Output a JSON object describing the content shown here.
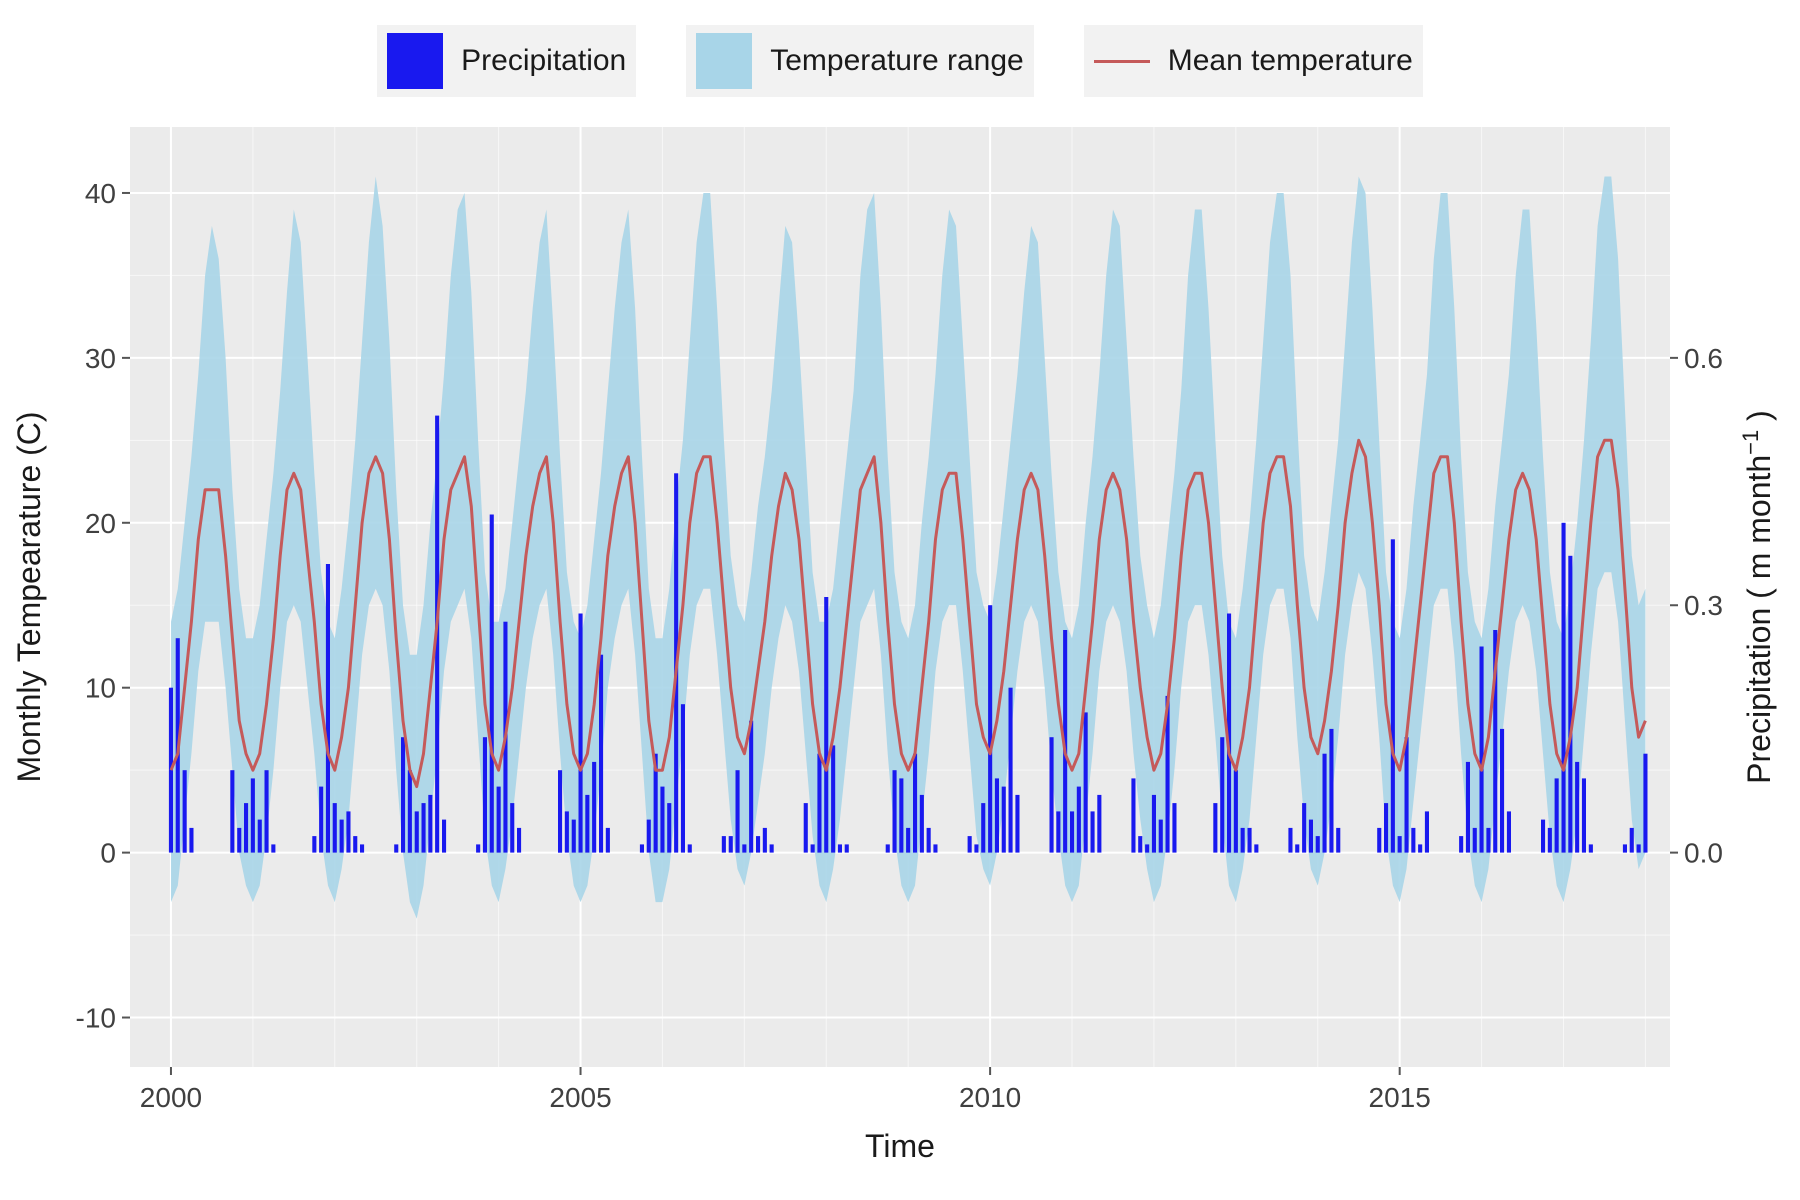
{
  "legend": {
    "precip_label": "Precipitation",
    "range_label": "Temperature range",
    "mean_label": "Mean temperature"
  },
  "chart": {
    "type": "combo-bar-line-ribbon",
    "x_axis": {
      "label": "Time",
      "ticks": [
        2000,
        2005,
        2010,
        2015
      ],
      "xlim": [
        1999.5,
        2018.3
      ],
      "label_fontsize": 32,
      "tick_fontsize": 28
    },
    "y_left": {
      "label": "Monthly Tempearature (C)",
      "ticks": [
        -10,
        0,
        10,
        20,
        30,
        40
      ],
      "ylim": [
        -13,
        44
      ],
      "label_fontsize": 32,
      "tick_fontsize": 28
    },
    "y_right": {
      "label_pre": "Precipitation ( m month",
      "label_sup": "−1",
      "label_post": " )",
      "ticks": [
        0.0,
        0.3,
        0.6
      ],
      "ylim": [
        -0.26,
        0.88
      ],
      "label_fontsize": 32,
      "tick_fontsize": 28
    },
    "colors": {
      "precip_bar": "#1919ef",
      "temp_range_fill": "#a8d5e8",
      "temp_range_opacity": 0.9,
      "mean_temp_line": "#c55a5a",
      "panel_bg": "#ebebeb",
      "grid": "#ffffff",
      "text": "#1a1a1a"
    },
    "line_width": 3,
    "bar_width_months": 0.6,
    "n_months": 217,
    "start_year": 2000.0,
    "monthly_mean_temp": [
      5,
      6,
      10,
      14,
      19,
      22,
      22,
      22,
      18,
      13,
      8,
      6,
      5,
      6,
      9,
      13,
      18,
      22,
      23,
      22,
      18,
      14,
      9,
      6,
      5,
      7,
      10,
      15,
      20,
      23,
      24,
      23,
      19,
      13,
      8,
      5,
      4,
      6,
      10,
      14,
      19,
      22,
      23,
      24,
      21,
      15,
      9,
      6,
      5,
      7,
      10,
      14,
      18,
      21,
      23,
      24,
      20,
      14,
      9,
      6,
      5,
      6,
      9,
      13,
      18,
      21,
      23,
      24,
      20,
      14,
      8,
      5,
      5,
      7,
      11,
      15,
      20,
      23,
      24,
      24,
      20,
      15,
      10,
      7,
      6,
      8,
      11,
      14,
      18,
      21,
      23,
      22,
      19,
      14,
      9,
      6,
      5,
      7,
      10,
      14,
      18,
      22,
      23,
      24,
      20,
      14,
      9,
      6,
      5,
      6,
      10,
      14,
      19,
      22,
      23,
      23,
      19,
      14,
      9,
      7,
      6,
      8,
      11,
      15,
      19,
      22,
      23,
      22,
      18,
      13,
      9,
      6,
      5,
      6,
      10,
      14,
      19,
      22,
      23,
      22,
      19,
      14,
      10,
      7,
      5,
      6,
      9,
      13,
      18,
      22,
      23,
      23,
      20,
      15,
      10,
      6,
      5,
      7,
      10,
      15,
      20,
      23,
      24,
      24,
      21,
      15,
      10,
      7,
      6,
      8,
      11,
      15,
      20,
      23,
      25,
      24,
      20,
      15,
      9,
      6,
      5,
      7,
      11,
      15,
      19,
      23,
      24,
      24,
      20,
      14,
      9,
      6,
      5,
      7,
      11,
      15,
      19,
      22,
      23,
      22,
      19,
      14,
      9,
      6,
      5,
      7,
      10,
      15,
      20,
      24,
      25,
      25,
      22,
      16,
      10,
      7,
      8
    ],
    "monthly_temp_lo": [
      -3,
      -2,
      2,
      6,
      11,
      14,
      14,
      14,
      10,
      5,
      0,
      -2,
      -3,
      -2,
      1,
      5,
      10,
      14,
      15,
      14,
      10,
      6,
      1,
      -2,
      -3,
      -1,
      2,
      7,
      12,
      15,
      16,
      15,
      11,
      5,
      0,
      -3,
      -4,
      -2,
      2,
      6,
      11,
      14,
      15,
      16,
      13,
      7,
      1,
      -2,
      -3,
      -1,
      2,
      6,
      10,
      13,
      15,
      16,
      12,
      6,
      1,
      -2,
      -3,
      -2,
      1,
      5,
      10,
      13,
      15,
      16,
      12,
      6,
      0,
      -3,
      -3,
      -1,
      3,
      7,
      12,
      15,
      16,
      16,
      12,
      7,
      2,
      -1,
      -2,
      0,
      3,
      6,
      10,
      13,
      15,
      14,
      11,
      6,
      1,
      -2,
      -3,
      -1,
      2,
      6,
      10,
      14,
      15,
      16,
      12,
      6,
      1,
      -2,
      -3,
      -2,
      2,
      6,
      11,
      14,
      15,
      15,
      11,
      6,
      1,
      -1,
      -2,
      0,
      3,
      7,
      11,
      14,
      15,
      14,
      10,
      5,
      1,
      -2,
      -3,
      -2,
      2,
      6,
      11,
      14,
      15,
      14,
      11,
      6,
      2,
      -1,
      -3,
      -2,
      1,
      5,
      10,
      14,
      15,
      15,
      12,
      7,
      2,
      -2,
      -3,
      -1,
      2,
      7,
      12,
      15,
      16,
      16,
      13,
      7,
      2,
      -1,
      -2,
      0,
      3,
      7,
      12,
      15,
      17,
      16,
      12,
      7,
      1,
      -2,
      -3,
      -1,
      3,
      7,
      11,
      15,
      16,
      16,
      12,
      6,
      1,
      -2,
      -3,
      -1,
      3,
      7,
      11,
      14,
      15,
      14,
      11,
      6,
      1,
      -2,
      -3,
      -1,
      2,
      7,
      12,
      16,
      17,
      17,
      14,
      8,
      2,
      -1,
      0
    ],
    "monthly_temp_hi": [
      14,
      16,
      20,
      24,
      29,
      35,
      38,
      36,
      30,
      22,
      16,
      13,
      13,
      15,
      19,
      23,
      28,
      34,
      39,
      37,
      30,
      23,
      17,
      14,
      13,
      16,
      20,
      25,
      31,
      37,
      41,
      38,
      31,
      22,
      15,
      12,
      12,
      15,
      20,
      24,
      29,
      35,
      39,
      40,
      34,
      25,
      17,
      14,
      14,
      16,
      20,
      24,
      28,
      33,
      37,
      39,
      32,
      24,
      17,
      14,
      13,
      15,
      19,
      23,
      28,
      33,
      37,
      39,
      33,
      24,
      16,
      13,
      13,
      16,
      21,
      25,
      31,
      37,
      40,
      40,
      33,
      25,
      18,
      15,
      14,
      17,
      21,
      24,
      28,
      33,
      38,
      37,
      31,
      24,
      17,
      14,
      14,
      16,
      20,
      24,
      28,
      35,
      39,
      40,
      33,
      24,
      17,
      14,
      13,
      15,
      20,
      24,
      29,
      35,
      39,
      38,
      31,
      24,
      17,
      15,
      14,
      17,
      21,
      25,
      29,
      34,
      38,
      37,
      30,
      23,
      17,
      14,
      13,
      15,
      20,
      24,
      29,
      35,
      39,
      38,
      31,
      24,
      18,
      15,
      13,
      15,
      19,
      23,
      28,
      35,
      39,
      39,
      33,
      25,
      18,
      14,
      13,
      16,
      20,
      25,
      31,
      37,
      40,
      40,
      35,
      26,
      18,
      15,
      14,
      17,
      21,
      25,
      31,
      37,
      41,
      40,
      33,
      25,
      17,
      14,
      13,
      16,
      21,
      25,
      29,
      36,
      40,
      40,
      33,
      24,
      17,
      14,
      13,
      16,
      21,
      25,
      29,
      35,
      39,
      39,
      32,
      24,
      17,
      14,
      13,
      16,
      20,
      25,
      31,
      38,
      41,
      41,
      36,
      27,
      18,
      15,
      16
    ],
    "monthly_precip_m": [
      0.2,
      0.26,
      0.1,
      0.03,
      0.0,
      0.0,
      0.0,
      0.0,
      0.0,
      0.1,
      0.03,
      0.06,
      0.09,
      0.04,
      0.1,
      0.01,
      0.0,
      0.0,
      0.0,
      0.0,
      0.0,
      0.02,
      0.08,
      0.35,
      0.06,
      0.04,
      0.05,
      0.02,
      0.01,
      0.0,
      0.0,
      0.0,
      0.0,
      0.01,
      0.14,
      0.1,
      0.05,
      0.06,
      0.07,
      0.53,
      0.04,
      0.0,
      0.0,
      0.0,
      0.0,
      0.01,
      0.14,
      0.41,
      0.08,
      0.28,
      0.06,
      0.03,
      0.0,
      0.0,
      0.0,
      0.0,
      0.0,
      0.1,
      0.05,
      0.04,
      0.29,
      0.07,
      0.11,
      0.24,
      0.03,
      0.0,
      0.0,
      0.0,
      0.0,
      0.01,
      0.04,
      0.12,
      0.08,
      0.06,
      0.46,
      0.18,
      0.01,
      0.0,
      0.0,
      0.0,
      0.0,
      0.02,
      0.02,
      0.1,
      0.01,
      0.16,
      0.02,
      0.03,
      0.01,
      0.0,
      0.0,
      0.0,
      0.0,
      0.06,
      0.01,
      0.12,
      0.31,
      0.13,
      0.01,
      0.01,
      0.0,
      0.0,
      0.0,
      0.0,
      0.0,
      0.01,
      0.1,
      0.09,
      0.03,
      0.12,
      0.07,
      0.03,
      0.01,
      0.0,
      0.0,
      0.0,
      0.0,
      0.02,
      0.01,
      0.06,
      0.3,
      0.09,
      0.08,
      0.2,
      0.07,
      0.0,
      0.0,
      0.0,
      0.0,
      0.14,
      0.05,
      0.27,
      0.05,
      0.08,
      0.17,
      0.05,
      0.07,
      0.0,
      0.0,
      0.0,
      0.0,
      0.09,
      0.02,
      0.01,
      0.07,
      0.04,
      0.19,
      0.06,
      0.0,
      0.0,
      0.0,
      0.0,
      0.0,
      0.06,
      0.14,
      0.29,
      0.1,
      0.03,
      0.03,
      0.01,
      0.0,
      0.0,
      0.0,
      0.0,
      0.03,
      0.01,
      0.06,
      0.04,
      0.02,
      0.12,
      0.15,
      0.03,
      0.0,
      0.0,
      0.0,
      0.0,
      0.0,
      0.03,
      0.06,
      0.38,
      0.02,
      0.14,
      0.03,
      0.01,
      0.05,
      0.0,
      0.0,
      0.0,
      0.0,
      0.02,
      0.11,
      0.03,
      0.25,
      0.03,
      0.27,
      0.15,
      0.05,
      0.0,
      0.0,
      0.0,
      0.0,
      0.04,
      0.03,
      0.09,
      0.4,
      0.36,
      0.11,
      0.09,
      0.01,
      0.0,
      0.0,
      0.0,
      0.0,
      0.01,
      0.03,
      0.01,
      0.12
    ]
  }
}
